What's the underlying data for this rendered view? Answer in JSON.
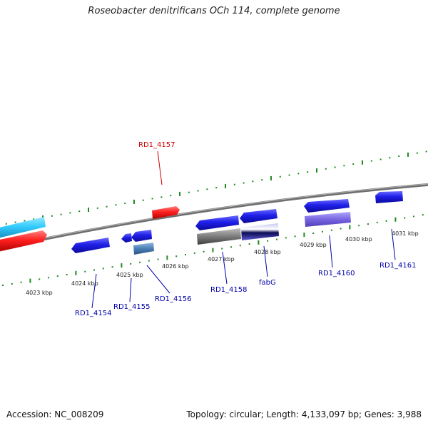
{
  "title": "Roseobacter denitrificans OCh 114, complete genome",
  "footer": {
    "accession": "Accession: NC_008209",
    "summary": "Topology: circular; Length: 4,133,097 bp; Genes: 3,988"
  },
  "colors": {
    "forward_gene": "#1f1fe8",
    "highlight_gene": "#ff2020",
    "cyan_gene": "#33ccff",
    "backbone": "#7a7a7a",
    "tick": "#1f8a1f",
    "gene_label": "#0000aa",
    "highlight_label": "#cc0000"
  },
  "scale": {
    "ticks": [
      {
        "label": "4023 kbp"
      },
      {
        "label": "4024 kbp"
      },
      {
        "label": "4025 kbp"
      },
      {
        "label": "4026 kbp"
      },
      {
        "label": "4027 kbp"
      },
      {
        "label": "4028 kbp"
      },
      {
        "label": "4029 kbp"
      },
      {
        "label": "4030 kbp"
      },
      {
        "label": "4031 kbp"
      }
    ]
  },
  "gene_labels": [
    {
      "name": "RD1_4157",
      "kind": "highlight"
    },
    {
      "name": "RD1_4154",
      "kind": "normal"
    },
    {
      "name": "RD1_4155",
      "kind": "normal"
    },
    {
      "name": "RD1_4156",
      "kind": "normal"
    },
    {
      "name": "RD1_4158",
      "kind": "normal"
    },
    {
      "name": "fabG",
      "kind": "normal"
    },
    {
      "name": "RD1_4160",
      "kind": "normal"
    },
    {
      "name": "RD1_4161",
      "kind": "normal"
    }
  ]
}
